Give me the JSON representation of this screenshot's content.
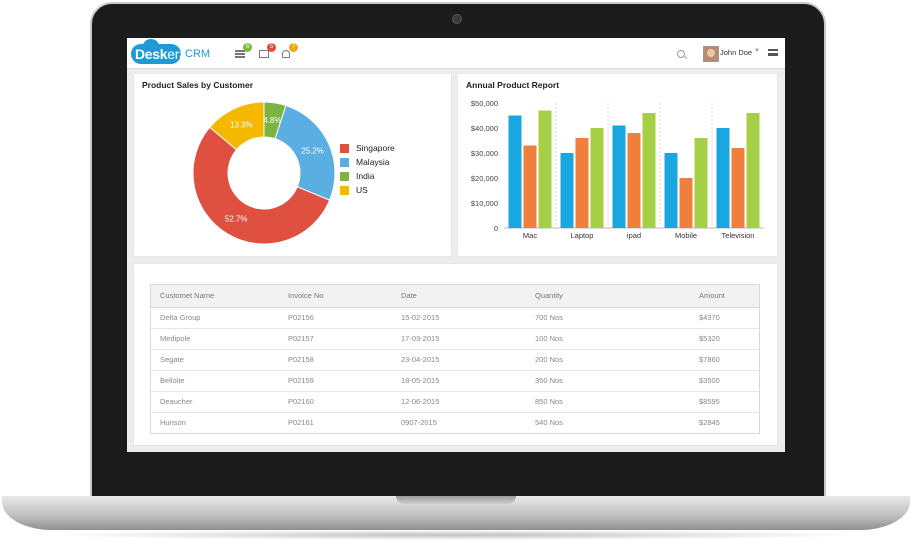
{
  "app": {
    "logo_text": "Desk",
    "logo_text2": "era",
    "logo_suffix": "CRM"
  },
  "topbar": {
    "badges": [
      "6",
      "5",
      "7"
    ],
    "user_name": "John Doe"
  },
  "pie_card": {
    "title": "Product Sales by Customer"
  },
  "bar_card": {
    "title": "Annual Product Report"
  },
  "chart_data": [
    {
      "type": "pie",
      "title": "Product Sales by Customer",
      "donut": true,
      "slices": [
        {
          "label": "Singapore",
          "value": 52.7,
          "display": "52.7%",
          "color": "#e05040"
        },
        {
          "label": "Malaysia",
          "value": 25.2,
          "display": "25.2%",
          "color": "#5aaee2"
        },
        {
          "label": "India",
          "value": 4.8,
          "display": "4.8%",
          "color": "#7cb342"
        },
        {
          "label": "US",
          "value": 13.3,
          "display": "13.3%",
          "color": "#f5b800"
        }
      ],
      "legend_order": [
        "Singapore",
        "Malaysia",
        "India",
        "US"
      ],
      "legend": "right"
    },
    {
      "type": "bar",
      "title": "Annual Product Report",
      "categories": [
        "Mac",
        "Laptop",
        "ipad",
        "Mobile",
        "Television"
      ],
      "series": [
        {
          "color": "#1aa6df",
          "values": [
            45000,
            30000,
            41000,
            30000,
            40000
          ]
        },
        {
          "color": "#f07f3c",
          "values": [
            33000,
            36000,
            38000,
            20000,
            32000
          ]
        },
        {
          "color": "#a5cf45",
          "values": [
            47000,
            40000,
            46000,
            36000,
            46000
          ]
        }
      ],
      "ylim": [
        0,
        50000
      ],
      "yticks": [
        "0",
        "$10,000",
        "$20,000",
        "$30,000",
        "$40,000",
        "$50,000"
      ],
      "ytick_values": [
        0,
        10000,
        20000,
        30000,
        40000,
        50000
      ],
      "grid": "vertical-dashed"
    }
  ],
  "table": {
    "headers": [
      "Customet Name",
      "Invoice No",
      "Date",
      "Quantity",
      "Amount"
    ],
    "rows": [
      [
        "Delta Group",
        "P02156",
        "15-02-2015",
        "700 Nos",
        "$4370"
      ],
      [
        "Medipole",
        "P02157",
        "17-03-2015",
        "100 Nos",
        "$5320"
      ],
      [
        "Segate",
        "P02158",
        "23-04-2015",
        "200 Nos",
        "$7860"
      ],
      [
        "Belloite",
        "P02159",
        "18-05-2015",
        "350 Nos",
        "$3500"
      ],
      [
        "Deaucher",
        "P02160",
        "12-06-2015",
        "850 Nos",
        "$8595"
      ],
      [
        "Hunson",
        "P02161",
        "0907-2015",
        "540 Nos",
        "$2845"
      ]
    ]
  }
}
